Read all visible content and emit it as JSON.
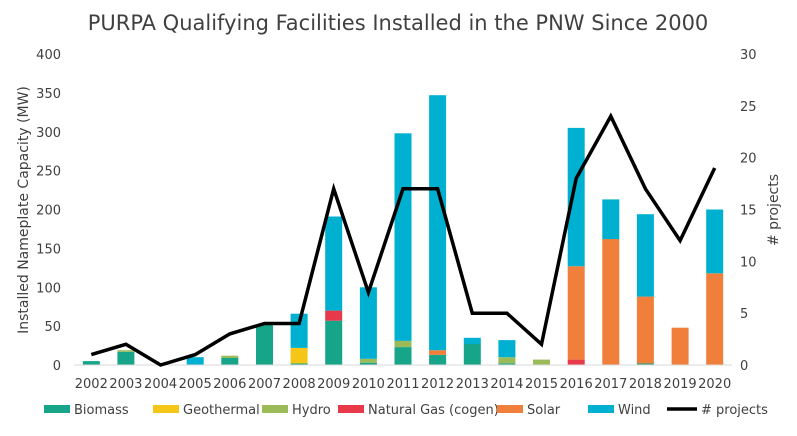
{
  "chart_data": {
    "type": "bar",
    "stacked": true,
    "title": "PURPA Qualifying Facilities Installed in the PNW Since 2000",
    "xlabel": "",
    "ylabel": "Installed Nameplate Capacity (MW)",
    "y2label": "# projects",
    "ylim": [
      0,
      400
    ],
    "y2lim": [
      0,
      30
    ],
    "yticks": [
      0,
      50,
      100,
      150,
      200,
      250,
      300,
      350,
      400
    ],
    "y2ticks": [
      0,
      5,
      10,
      15,
      20,
      25,
      30
    ],
    "grid": false,
    "legend_position": "bottom",
    "categories": [
      "2002",
      "2003",
      "2004",
      "2005",
      "2006",
      "2007",
      "2008",
      "2009",
      "2010",
      "2011",
      "2012",
      "2013",
      "2014",
      "2015",
      "2016",
      "2017",
      "2018",
      "2019",
      "2020"
    ],
    "series": [
      {
        "name": "Biomass",
        "color": "#17a589",
        "values": [
          5,
          17,
          0,
          0,
          9,
          52,
          2,
          57,
          3,
          23,
          13,
          27,
          2,
          0,
          0,
          0,
          2,
          0,
          0
        ]
      },
      {
        "name": "Geothermal",
        "color": "#f5c518",
        "values": [
          0,
          0,
          0,
          0,
          0,
          0,
          20,
          0,
          0,
          0,
          0,
          0,
          0,
          0,
          0,
          0,
          0,
          0,
          0
        ]
      },
      {
        "name": "Hydro",
        "color": "#9bbb59",
        "values": [
          0,
          2,
          0,
          0,
          3,
          0,
          0,
          0,
          5,
          8,
          0,
          0,
          8,
          7,
          0,
          0,
          0,
          0,
          0
        ]
      },
      {
        "name": "Natural Gas (cogen)",
        "color": "#e8394a",
        "values": [
          0,
          0,
          0,
          0,
          0,
          0,
          0,
          13,
          0,
          0,
          0,
          0,
          0,
          0,
          7,
          0,
          0,
          0,
          0
        ]
      },
      {
        "name": "Solar",
        "color": "#f07f3c",
        "values": [
          0,
          0,
          0,
          0,
          0,
          0,
          0,
          0,
          0,
          0,
          6,
          0,
          0,
          0,
          120,
          162,
          86,
          48,
          118
        ]
      },
      {
        "name": "Wind",
        "color": "#00b0d0",
        "values": [
          0,
          0,
          0,
          10,
          0,
          0,
          44,
          121,
          92,
          267,
          328,
          8,
          22,
          0,
          178,
          51,
          106,
          0,
          82
        ]
      }
    ],
    "line_series": {
      "name": "# projects",
      "color": "#000000",
      "axis": "right",
      "values": [
        1,
        2,
        0,
        1,
        3,
        4,
        4,
        17,
        7,
        17,
        17,
        5,
        5,
        2,
        18,
        24,
        17,
        12,
        19
      ]
    }
  }
}
